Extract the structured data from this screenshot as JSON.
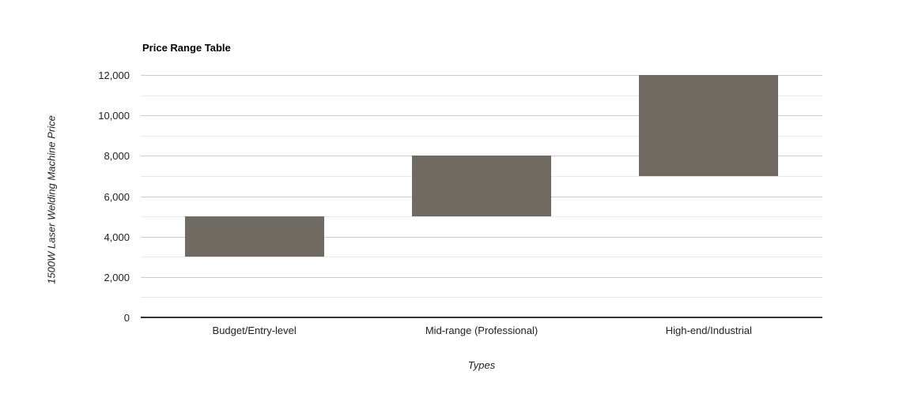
{
  "chart_data": {
    "type": "bar",
    "subtype": "floating-range-column",
    "title": "Price Range Table",
    "xlabel": "Types",
    "ylabel": "1500W Laser Welding Machine Price",
    "categories": [
      "Budget/Entry-level",
      "Mid-range (Professional)",
      "High-end/Industrial"
    ],
    "series": [
      {
        "name": "price-range",
        "values": [
          [
            3000,
            5000
          ],
          [
            5000,
            8000
          ],
          [
            7000,
            12000
          ]
        ]
      }
    ],
    "ylim": [
      0,
      12000
    ],
    "y_ticks": [
      {
        "value": 0,
        "label": "0"
      },
      {
        "value": 2000,
        "label": "2,000"
      },
      {
        "value": 4000,
        "label": "4,000"
      },
      {
        "value": 6000,
        "label": "6,000"
      },
      {
        "value": 8000,
        "label": "8,000"
      },
      {
        "value": 10000,
        "label": "10,000"
      },
      {
        "value": 12000,
        "label": "12,000"
      }
    ],
    "y_minor_gridlines": [
      1000,
      3000,
      5000,
      7000,
      9000,
      11000
    ],
    "grid": true,
    "legend": "none",
    "colors": {
      "bar_fill": "#6F6B63",
      "major_gridline": "#cccccc",
      "minor_gridline": "#e8e8e8",
      "axis_baseline": "#333333",
      "text": "#222222",
      "title_text": "#000000",
      "background": "#ffffff"
    }
  }
}
